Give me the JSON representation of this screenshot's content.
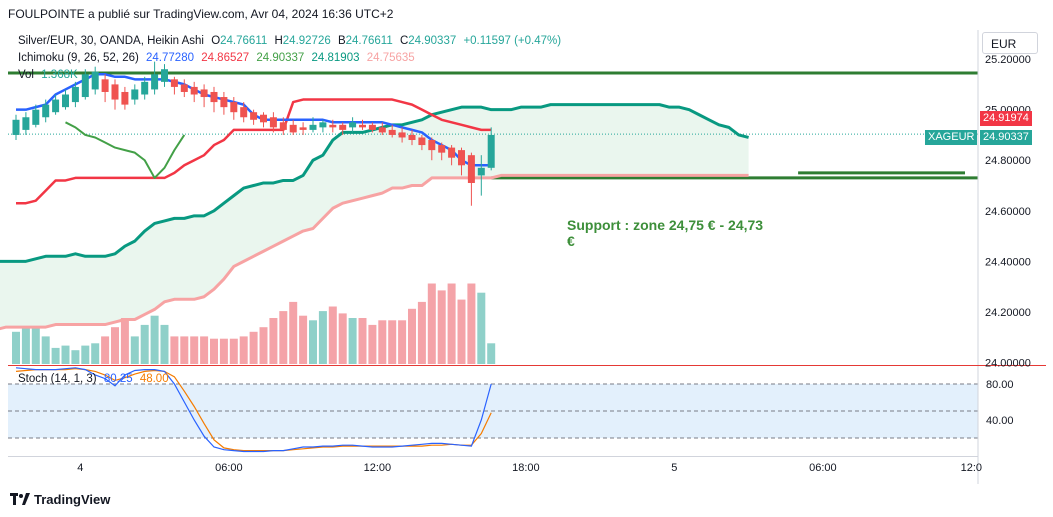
{
  "header": {
    "publisher": "FOULPOINTE a publié sur TradingView.com, Avr 04, 2024 16:36 UTC+2"
  },
  "legend": {
    "symbol": "Silver/EUR, 30, OANDA, Heikin Ashi",
    "ohlc": {
      "o_label": "O",
      "o": "24.76611",
      "h_label": "H",
      "h": "24.92726",
      "b_label": "B",
      "b": "24.76611",
      "c_label": "C",
      "c": "24.90337",
      "change": "+0.11597 (+0.47%)"
    },
    "ichimoku": {
      "label": "Ichimoku (9, 26, 52, 26)",
      "v1": "24.77280",
      "v2": "24.86527",
      "v3": "24.90337",
      "v4": "24.81903",
      "v5": "24.75635"
    },
    "vol": {
      "label": "Vol",
      "value": "1.368K"
    },
    "stoch": {
      "label": "Stoch (14, 1, 3)",
      "k": "80.25",
      "d": "48.00"
    }
  },
  "currency_button": "EUR",
  "price_badges": {
    "red": "24.91974",
    "symbol": "XAGEUR",
    "green": "24.90337"
  },
  "annotation": "Support : zone 24,75 € - 24,73 €",
  "footer": "TradingView",
  "colors": {
    "up": "#26a69a",
    "down": "#ef5350",
    "tenkan": "#2962ff",
    "kijun": "#f23645",
    "span_a": "#089981",
    "span_b": "#f7a3a3",
    "chikou": "#43a047",
    "line_green": "#2e7d32",
    "vol_up": "#8fd0c9",
    "vol_down": "#f4a3a8",
    "stoch_k": "#2962ff",
    "stoch_d": "#f57c00"
  },
  "chart_data": {
    "type": "candlestick",
    "price_axis": {
      "ticks": [
        "25.20000",
        "25.00000",
        "24.80000",
        "24.60000",
        "24.40000",
        "24.20000",
        "24.00000"
      ],
      "ylim": [
        23.99,
        25.24
      ]
    },
    "stoch_axis": {
      "ticks": [
        "80.00",
        "40.00"
      ],
      "ylim": [
        0,
        100
      ]
    },
    "time_axis": {
      "ticks": [
        "4",
        "06:00",
        "12:00",
        "18:00",
        "5",
        "06:00",
        "12:0"
      ]
    },
    "horizontal_lines": [
      25.145,
      24.73,
      24.75
    ],
    "candles": [
      {
        "o": 24.9,
        "c": 24.96,
        "h": 24.98,
        "l": 24.88
      },
      {
        "o": 24.92,
        "c": 24.97,
        "h": 24.99,
        "l": 24.9
      },
      {
        "o": 24.94,
        "c": 25.0,
        "h": 25.02,
        "l": 24.93
      },
      {
        "o": 24.97,
        "c": 25.02,
        "h": 25.04,
        "l": 24.95
      },
      {
        "o": 24.99,
        "c": 25.04,
        "h": 25.06,
        "l": 24.98
      },
      {
        "o": 25.01,
        "c": 25.06,
        "h": 25.08,
        "l": 25.0
      },
      {
        "o": 25.03,
        "c": 25.09,
        "h": 25.11,
        "l": 25.01
      },
      {
        "o": 25.05,
        "c": 25.14,
        "h": 25.16,
        "l": 25.04
      },
      {
        "o": 25.08,
        "c": 25.15,
        "h": 25.17,
        "l": 25.06
      },
      {
        "o": 25.12,
        "c": 25.07,
        "h": 25.14,
        "l": 25.03
      },
      {
        "o": 25.1,
        "c": 25.04,
        "h": 25.12,
        "l": 25.0
      },
      {
        "o": 25.07,
        "c": 25.02,
        "h": 25.09,
        "l": 25.0
      },
      {
        "o": 25.04,
        "c": 25.08,
        "h": 25.1,
        "l": 25.02
      },
      {
        "o": 25.06,
        "c": 25.11,
        "h": 25.13,
        "l": 25.04
      },
      {
        "o": 25.08,
        "c": 25.14,
        "h": 25.19,
        "l": 25.06
      },
      {
        "o": 25.11,
        "c": 25.16,
        "h": 25.18,
        "l": 25.09
      },
      {
        "o": 25.12,
        "c": 25.09,
        "h": 25.13,
        "l": 25.06
      },
      {
        "o": 25.1,
        "c": 25.07,
        "h": 25.12,
        "l": 25.05
      },
      {
        "o": 25.09,
        "c": 25.06,
        "h": 25.11,
        "l": 25.03
      },
      {
        "o": 25.08,
        "c": 25.05,
        "h": 25.1,
        "l": 25.01
      },
      {
        "o": 25.07,
        "c": 25.03,
        "h": 25.09,
        "l": 24.99
      },
      {
        "o": 25.05,
        "c": 25.01,
        "h": 25.07,
        "l": 24.98
      },
      {
        "o": 25.03,
        "c": 24.99,
        "h": 25.05,
        "l": 24.96
      },
      {
        "o": 25.01,
        "c": 24.97,
        "h": 25.03,
        "l": 24.95
      },
      {
        "o": 24.99,
        "c": 24.96,
        "h": 25.0,
        "l": 24.94
      },
      {
        "o": 24.98,
        "c": 24.95,
        "h": 24.99,
        "l": 24.93
      },
      {
        "o": 24.97,
        "c": 24.93,
        "h": 24.99,
        "l": 24.91
      },
      {
        "o": 24.95,
        "c": 24.92,
        "h": 24.97,
        "l": 24.9
      },
      {
        "o": 24.94,
        "c": 24.91,
        "h": 24.96,
        "l": 24.9
      },
      {
        "o": 24.93,
        "c": 24.92,
        "h": 24.95,
        "l": 24.9
      },
      {
        "o": 24.92,
        "c": 24.94,
        "h": 24.97,
        "l": 24.91
      },
      {
        "o": 24.93,
        "c": 24.95,
        "h": 24.96,
        "l": 24.91
      },
      {
        "o": 24.94,
        "c": 24.93,
        "h": 24.96,
        "l": 24.91
      },
      {
        "o": 24.94,
        "c": 24.92,
        "h": 24.95,
        "l": 24.9
      },
      {
        "o": 24.93,
        "c": 24.95,
        "h": 24.97,
        "l": 24.91
      },
      {
        "o": 24.94,
        "c": 24.93,
        "h": 24.96,
        "l": 24.92
      },
      {
        "o": 24.94,
        "c": 24.92,
        "h": 24.95,
        "l": 24.91
      },
      {
        "o": 24.93,
        "c": 24.91,
        "h": 24.95,
        "l": 24.9
      },
      {
        "o": 24.92,
        "c": 24.9,
        "h": 24.94,
        "l": 24.89
      },
      {
        "o": 24.91,
        "c": 24.89,
        "h": 24.93,
        "l": 24.87
      },
      {
        "o": 24.9,
        "c": 24.88,
        "h": 24.92,
        "l": 24.86
      },
      {
        "o": 24.89,
        "c": 24.86,
        "h": 24.9,
        "l": 24.84
      },
      {
        "o": 24.88,
        "c": 24.84,
        "h": 24.89,
        "l": 24.8
      },
      {
        "o": 24.86,
        "c": 24.83,
        "h": 24.87,
        "l": 24.8
      },
      {
        "o": 24.85,
        "c": 24.81,
        "h": 24.86,
        "l": 24.78
      },
      {
        "o": 24.84,
        "c": 24.78,
        "h": 24.85,
        "l": 24.74
      },
      {
        "o": 24.82,
        "c": 24.71,
        "h": 24.83,
        "l": 24.62
      },
      {
        "o": 24.74,
        "c": 24.77,
        "h": 24.82,
        "l": 24.66
      },
      {
        "o": 24.77,
        "c": 24.9,
        "h": 24.93,
        "l": 24.76
      }
    ],
    "volume": [
      14,
      16,
      16,
      12,
      7,
      8,
      6,
      8,
      9,
      12,
      16,
      20,
      12,
      17,
      21,
      17,
      12,
      12,
      12,
      12,
      11,
      11,
      11,
      12,
      14,
      16,
      20,
      23,
      27,
      21,
      19,
      23,
      25,
      22,
      20,
      20,
      17,
      19,
      19,
      19,
      24,
      27,
      35,
      32,
      35,
      28,
      35,
      31,
      9
    ],
    "tenkan": [
      25.0,
      25.0,
      25.01,
      25.02,
      25.06,
      25.08,
      25.1,
      25.12,
      25.14,
      25.14,
      25.13,
      25.13,
      25.12,
      25.12,
      25.12,
      25.12,
      25.11,
      25.1,
      25.08,
      25.06,
      25.05,
      25.04,
      25.03,
      25.02,
      24.98,
      24.96,
      24.96,
      24.96,
      24.96,
      24.96,
      24.96,
      24.96,
      24.95,
      24.95,
      24.95,
      24.95,
      24.95,
      24.95,
      24.94,
      24.93,
      24.92,
      24.91,
      24.88,
      24.86,
      24.84,
      24.8,
      24.78,
      24.78,
      24.78
    ],
    "kijun": [
      24.63,
      24.63,
      24.64,
      24.68,
      24.72,
      24.72,
      24.73,
      24.73,
      24.73,
      24.73,
      24.73,
      24.73,
      24.73,
      24.73,
      24.73,
      24.73,
      24.75,
      24.78,
      24.8,
      24.82,
      24.86,
      24.88,
      24.92,
      24.92,
      24.92,
      24.92,
      24.92,
      24.92,
      25.03,
      25.04,
      25.04,
      25.04,
      25.04,
      25.04,
      25.04,
      25.04,
      25.04,
      25.04,
      25.04,
      25.03,
      25.02,
      25.0,
      24.98,
      24.96,
      24.95,
      24.94,
      24.93,
      24.92,
      24.92
    ],
    "span_a": [
      24.38,
      24.38,
      24.39,
      24.4,
      24.4,
      24.4,
      24.4,
      24.4,
      24.41,
      24.42,
      24.42,
      24.42,
      24.43,
      24.42,
      24.42,
      24.42,
      24.43,
      24.46,
      24.48,
      24.52,
      24.55,
      24.56,
      24.57,
      24.57,
      24.58,
      24.58,
      24.6,
      24.63,
      24.66,
      24.69,
      24.7,
      24.71,
      24.71,
      24.72,
      24.72,
      24.74,
      24.8,
      24.82,
      24.88,
      24.91,
      24.91,
      24.91,
      24.92,
      24.93,
      24.94,
      24.94,
      24.95,
      24.96,
      24.98,
      24.99,
      25.0,
      25.01,
      25.01,
      25.01,
      25.0,
      25.0,
      25.0,
      25.01,
      25.01,
      25.01,
      25.02,
      25.02,
      25.02,
      25.02,
      25.02,
      25.02,
      25.02,
      25.02,
      25.02,
      25.02,
      25.02,
      25.02,
      25.01,
      25.01,
      25.0,
      24.98,
      24.96,
      24.94,
      24.93,
      24.9,
      24.89
    ],
    "span_b": [
      24.11,
      24.11,
      24.12,
      24.13,
      24.13,
      24.14,
      24.14,
      24.14,
      24.14,
      24.14,
      24.15,
      24.15,
      24.15,
      24.15,
      24.15,
      24.15,
      24.16,
      24.17,
      24.17,
      24.19,
      24.21,
      24.24,
      24.25,
      24.25,
      24.25,
      24.26,
      24.29,
      24.33,
      24.38,
      24.4,
      24.42,
      24.44,
      24.46,
      24.48,
      24.5,
      24.52,
      24.53,
      24.57,
      24.61,
      24.63,
      24.64,
      24.65,
      24.66,
      24.67,
      24.69,
      24.69,
      24.7,
      24.7,
      24.73,
      24.73,
      24.73,
      24.73,
      24.73,
      24.73,
      24.73,
      24.74,
      24.74,
      24.74,
      24.74,
      24.74,
      24.74,
      24.74,
      24.74,
      24.74,
      24.74,
      24.74,
      24.74,
      24.74,
      24.74,
      24.74,
      24.74,
      24.74,
      24.74,
      24.74,
      24.74,
      24.74,
      24.74,
      24.74,
      24.74,
      24.74,
      24.74
    ],
    "chikou": [
      24.95,
      24.93,
      24.9,
      24.89,
      24.87,
      24.85,
      24.84,
      24.83,
      24.8,
      24.73,
      24.77,
      24.84,
      24.9
    ],
    "stoch_k": [
      98,
      97,
      96,
      96,
      96,
      97,
      98,
      96,
      90,
      86,
      78,
      90,
      95,
      96,
      96,
      94,
      80,
      60,
      40,
      22,
      10,
      7,
      6,
      5,
      5,
      5,
      6,
      6,
      8,
      10,
      10,
      11,
      11,
      12,
      12,
      11,
      10,
      10,
      10,
      11,
      12,
      13,
      14,
      14,
      13,
      12,
      11,
      40,
      80
    ],
    "stoch_d": [
      94,
      95,
      96,
      96,
      96,
      96,
      97,
      96,
      94,
      90,
      84,
      87,
      91,
      94,
      95,
      94,
      88,
      72,
      55,
      36,
      18,
      9,
      7,
      6,
      6,
      6,
      6,
      6,
      7,
      8,
      9,
      10,
      10,
      11,
      11,
      11,
      11,
      11,
      11,
      11,
      11,
      11,
      12,
      12,
      13,
      12,
      12,
      25,
      48
    ]
  }
}
